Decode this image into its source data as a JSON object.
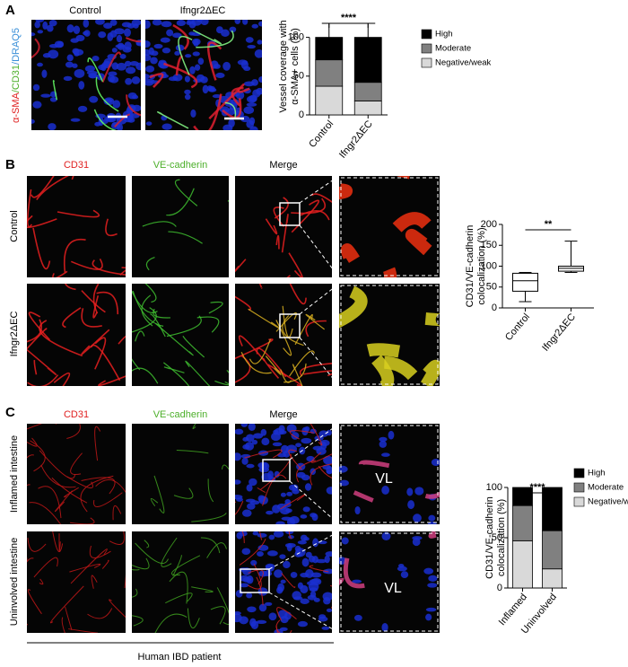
{
  "panel_labels": [
    "A",
    "B",
    "C"
  ],
  "panel_a": {
    "stain": [
      "α-SMA",
      "/CD31",
      "/DRAQ5"
    ],
    "columns": [
      "Control",
      "Ifngr2ΔEC"
    ]
  },
  "panel_b": {
    "columns": [
      "CD31",
      "VE-cadherin",
      "Merge"
    ],
    "rows": [
      "Control",
      "Ifngr2ΔEC"
    ]
  },
  "panel_c": {
    "columns": [
      "CD31",
      "VE-cadherin",
      "Merge"
    ],
    "rows": [
      "Inflamed intestine",
      "Uninvolved intestine"
    ],
    "zoom_labels": [
      "VL",
      "VL"
    ],
    "footer": "Human IBD patient"
  },
  "chart_data": [
    {
      "type": "stacked_bar",
      "ylabel": [
        "Vessel coverage with",
        "α-SMA+ cells (%)"
      ],
      "categories": [
        "Control",
        "Ifngr2ΔEC"
      ],
      "series": [
        {
          "name": "Negative/weak",
          "color": "#d9d9d9",
          "values": [
            37,
            18
          ]
        },
        {
          "name": "Moderate",
          "color": "#808080",
          "values": [
            34,
            24
          ]
        },
        {
          "name": "High",
          "color": "#000000",
          "values": [
            29,
            58
          ],
          "errors": [
            18,
            18
          ]
        }
      ],
      "ylim": [
        0,
        125
      ],
      "yticks": [
        0,
        50,
        100
      ],
      "significance": "****"
    },
    {
      "type": "box",
      "ylabel": [
        "CD31/VE-cadherin",
        "colocalization (%)"
      ],
      "categories": [
        "Control",
        "Ifngr2ΔEC"
      ],
      "boxes": [
        {
          "min": 15,
          "q1": 40,
          "median": 65,
          "q3": 83,
          "max": 85
        },
        {
          "min": 85,
          "q1": 88,
          "median": 95,
          "q3": 100,
          "max": 160
        }
      ],
      "ylim": [
        0,
        200
      ],
      "yticks": [
        0,
        50,
        100,
        150,
        200
      ],
      "significance": "**"
    },
    {
      "type": "stacked_bar",
      "ylabel": [
        "CD31/VE-cadherin",
        "colocalization (%)"
      ],
      "categories": [
        "Inflamed",
        "Uninvolved"
      ],
      "series": [
        {
          "name": "Negative/weak",
          "color": "#d9d9d9",
          "values": [
            47,
            19
          ]
        },
        {
          "name": "Moderate",
          "color": "#808080",
          "values": [
            35,
            38
          ]
        },
        {
          "name": "High",
          "color": "#000000",
          "values": [
            18,
            43
          ]
        }
      ],
      "ylim": [
        0,
        100
      ],
      "yticks": [
        0,
        50,
        100
      ],
      "significance": "****"
    }
  ]
}
